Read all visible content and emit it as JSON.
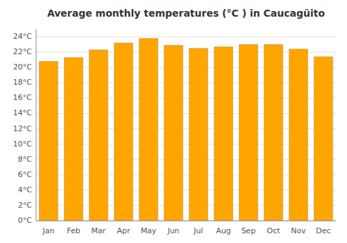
{
  "chart_data": {
    "type": "bar",
    "title": "Average monthly temperatures (°C ) in Caucagüito",
    "categories": [
      "Jan",
      "Feb",
      "Mar",
      "Apr",
      "May",
      "Jun",
      "Jul",
      "Aug",
      "Sep",
      "Oct",
      "Nov",
      "Dec"
    ],
    "values": [
      20.8,
      21.3,
      22.3,
      23.2,
      23.8,
      22.9,
      22.5,
      22.7,
      23.0,
      23.0,
      22.4,
      21.4
    ],
    "color": "#FFA500",
    "ylim": [
      0,
      25
    ],
    "yticks": [
      {
        "value": 0,
        "label": "0°C"
      },
      {
        "value": 2,
        "label": "2°C"
      },
      {
        "value": 4,
        "label": "4°C"
      },
      {
        "value": 6,
        "label": "6°C"
      },
      {
        "value": 8,
        "label": "8°C"
      },
      {
        "value": 10,
        "label": "10°C"
      },
      {
        "value": 12,
        "label": "12°C"
      },
      {
        "value": 14,
        "label": "14°C"
      },
      {
        "value": 16,
        "label": "16°C"
      },
      {
        "value": 18,
        "label": "18°C"
      },
      {
        "value": 20,
        "label": "20°C"
      },
      {
        "value": 22,
        "label": "22°C"
      },
      {
        "value": 24,
        "label": "24°C"
      }
    ],
    "grid": true
  }
}
